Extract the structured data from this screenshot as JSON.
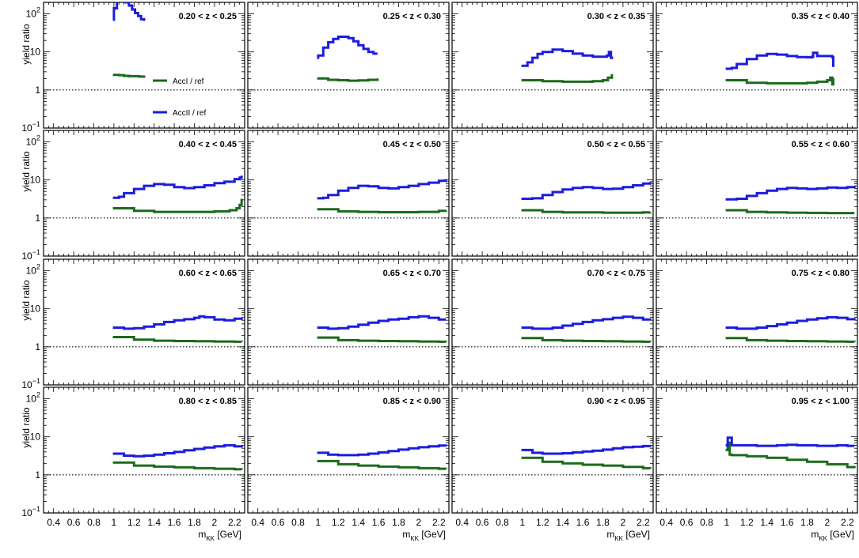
{
  "figure": {
    "ylabel": "yield ratio",
    "xlabel_main": "m",
    "xlabel_sub": "KK",
    "xlabel_unit": " [GeV]"
  },
  "colors": {
    "accI": "#1a6b1a",
    "accII": "#1c1ce0",
    "frame": "#000000",
    "reference_line": "#000000"
  },
  "legend": {
    "entries": [
      {
        "label": "AccI  / ref",
        "series": "accI"
      },
      {
        "label": "AccII  / ref",
        "series": "accII"
      }
    ]
  },
  "axis": {
    "x_ticks": [
      {
        "value": 0.4,
        "label": "0.4"
      },
      {
        "value": 0.6,
        "label": "0.6"
      },
      {
        "value": 0.8,
        "label": "0.8"
      },
      {
        "value": 1.0,
        "label": "1"
      },
      {
        "value": 1.2,
        "label": "1.2"
      },
      {
        "value": 1.4,
        "label": "1.4"
      },
      {
        "value": 1.6,
        "label": "1.6"
      },
      {
        "value": 1.8,
        "label": "1.8"
      },
      {
        "value": 2.0,
        "label": "2"
      },
      {
        "value": 2.2,
        "label": "2.2"
      }
    ],
    "y_ticks": [
      {
        "value": 0.1,
        "base": "10",
        "exp": "−1"
      },
      {
        "value": 1,
        "base": "1",
        "exp": ""
      },
      {
        "value": 10,
        "base": "10",
        "exp": ""
      },
      {
        "value": 100,
        "base": "10",
        "exp": "2"
      }
    ]
  },
  "chart_data": {
    "type": "line",
    "layout": "grid 4x4 of panels, shared axes",
    "x_range": [
      0.3,
      2.3
    ],
    "y_range": [
      0.1,
      200
    ],
    "y_scale": "log",
    "reference_line": 1,
    "panels": [
      {
        "label": "0.20 < z < 0.25",
        "accII": {
          "x": [
            0.99,
            1.0,
            1.03,
            1.06,
            1.09,
            1.12,
            1.15,
            1.18,
            1.21,
            1.24,
            1.27,
            1.3
          ],
          "y": [
            70,
            140,
            220,
            230,
            225,
            200,
            165,
            130,
            105,
            88,
            72,
            65
          ]
        },
        "accI": {
          "x": [
            0.99,
            1.05,
            1.1,
            1.15,
            1.2,
            1.25,
            1.3
          ],
          "y": [
            2.5,
            2.45,
            2.35,
            2.3,
            2.3,
            2.25,
            2.4
          ]
        }
      },
      {
        "label": "0.25 < z < 0.30",
        "accII": {
          "x": [
            0.99,
            1.0,
            1.05,
            1.1,
            1.15,
            1.2,
            1.25,
            1.3,
            1.35,
            1.4,
            1.45,
            1.5,
            1.55,
            1.59
          ],
          "y": [
            7,
            8,
            13,
            18,
            22,
            25,
            25,
            23,
            19,
            15,
            12,
            10,
            9,
            9
          ]
        },
        "accI": {
          "x": [
            0.99,
            1.1,
            1.2,
            1.3,
            1.4,
            1.5,
            1.59
          ],
          "y": [
            2.0,
            1.85,
            1.8,
            1.75,
            1.78,
            1.85,
            2.0
          ]
        }
      },
      {
        "label": "0.30 < z < 0.35",
        "accII": {
          "x": [
            0.99,
            1.05,
            1.1,
            1.15,
            1.2,
            1.3,
            1.4,
            1.5,
            1.6,
            1.7,
            1.8,
            1.84,
            1.86,
            1.88,
            1.89
          ],
          "y": [
            4.3,
            5.3,
            7,
            8.8,
            10,
            11.5,
            10.5,
            9,
            8,
            7.5,
            7.5,
            8,
            10,
            7,
            6.5
          ]
        },
        "accI": {
          "x": [
            0.99,
            1.2,
            1.4,
            1.6,
            1.7,
            1.8,
            1.85,
            1.89
          ],
          "y": [
            1.8,
            1.7,
            1.65,
            1.65,
            1.7,
            1.8,
            2.1,
            2.6
          ]
        }
      },
      {
        "label": "0.35 < z < 0.40",
        "accII": {
          "x": [
            0.99,
            1.05,
            1.1,
            1.2,
            1.3,
            1.4,
            1.5,
            1.6,
            1.7,
            1.8,
            1.85,
            1.86,
            1.9,
            2.0,
            2.05,
            2.06
          ],
          "y": [
            3.6,
            3.8,
            4.8,
            6.5,
            8.0,
            8.8,
            8.5,
            7.8,
            7.3,
            7.2,
            7.5,
            9.5,
            7.8,
            7.8,
            7.2,
            4.0
          ]
        },
        "accI": {
          "x": [
            0.99,
            1.2,
            1.4,
            1.6,
            1.8,
            1.9,
            2.0,
            2.03,
            2.05,
            2.06
          ],
          "y": [
            1.8,
            1.55,
            1.5,
            1.5,
            1.55,
            1.65,
            1.8,
            2.1,
            1.4,
            2.0
          ]
        }
      },
      {
        "label": "0.40 < z < 0.45",
        "accII": {
          "x": [
            0.99,
            1.05,
            1.1,
            1.2,
            1.3,
            1.4,
            1.5,
            1.6,
            1.7,
            1.8,
            1.9,
            2.0,
            2.1,
            2.2,
            2.25,
            2.27
          ],
          "y": [
            3.4,
            3.6,
            4.5,
            5.8,
            7.0,
            7.8,
            7.5,
            6.5,
            6.1,
            6.5,
            7.2,
            8.2,
            9.0,
            10.5,
            11.5,
            13
          ]
        },
        "accI": {
          "x": [
            0.99,
            1.2,
            1.4,
            1.6,
            1.8,
            2.0,
            2.15,
            2.22,
            2.25,
            2.27
          ],
          "y": [
            1.8,
            1.55,
            1.45,
            1.45,
            1.45,
            1.5,
            1.6,
            1.8,
            2.2,
            3.2
          ]
        }
      },
      {
        "label": "0.45 < z < 0.50",
        "accII": {
          "x": [
            0.99,
            1.05,
            1.1,
            1.2,
            1.3,
            1.4,
            1.5,
            1.6,
            1.7,
            1.8,
            1.9,
            2.0,
            2.1,
            2.2,
            2.27
          ],
          "y": [
            3.3,
            3.4,
            4.0,
            5.2,
            6.2,
            7.0,
            6.8,
            6.2,
            6.0,
            6.5,
            7.0,
            7.8,
            8.5,
            9.5,
            10.5
          ]
        },
        "accI": {
          "x": [
            0.99,
            1.2,
            1.4,
            1.6,
            1.8,
            2.0,
            2.2,
            2.27
          ],
          "y": [
            1.7,
            1.5,
            1.45,
            1.42,
            1.42,
            1.45,
            1.55,
            1.6
          ]
        }
      },
      {
        "label": "0.50 < z < 0.55",
        "accII": {
          "x": [
            0.99,
            1.1,
            1.2,
            1.3,
            1.4,
            1.5,
            1.6,
            1.7,
            1.8,
            1.9,
            2.0,
            2.1,
            2.2,
            2.27
          ],
          "y": [
            3.2,
            3.3,
            4.0,
            4.8,
            5.6,
            6.2,
            6.5,
            6.2,
            5.8,
            5.9,
            6.5,
            7.2,
            8.0,
            8.8
          ]
        },
        "accI": {
          "x": [
            0.99,
            1.2,
            1.4,
            1.6,
            1.8,
            2.0,
            2.2,
            2.27
          ],
          "y": [
            1.6,
            1.45,
            1.4,
            1.4,
            1.38,
            1.38,
            1.4,
            1.42
          ]
        }
      },
      {
        "label": "0.55 < z < 0.60",
        "accII": {
          "x": [
            0.99,
            1.1,
            1.2,
            1.3,
            1.4,
            1.5,
            1.6,
            1.7,
            1.8,
            1.9,
            2.0,
            2.1,
            2.2,
            2.27
          ],
          "y": [
            3.1,
            3.2,
            3.8,
            4.5,
            5.2,
            5.8,
            6.2,
            6.0,
            5.8,
            6.0,
            6.3,
            6.2,
            6.5,
            7.0
          ]
        },
        "accI": {
          "x": [
            0.99,
            1.2,
            1.4,
            1.6,
            1.8,
            2.0,
            2.2,
            2.27
          ],
          "y": [
            1.6,
            1.45,
            1.4,
            1.38,
            1.36,
            1.35,
            1.35,
            1.35
          ]
        }
      },
      {
        "label": "0.60 < z < 0.65",
        "accII": {
          "x": [
            0.99,
            1.1,
            1.2,
            1.3,
            1.4,
            1.5,
            1.6,
            1.7,
            1.8,
            1.85,
            1.9,
            2.0,
            2.1,
            2.2,
            2.27
          ],
          "y": [
            3.2,
            3.0,
            3.1,
            3.4,
            3.9,
            4.5,
            5.0,
            5.3,
            5.8,
            6.3,
            6.0,
            5.2,
            5.0,
            5.5,
            5.8
          ]
        },
        "accI": {
          "x": [
            0.99,
            1.2,
            1.4,
            1.6,
            1.8,
            2.0,
            2.2,
            2.27
          ],
          "y": [
            1.8,
            1.55,
            1.45,
            1.42,
            1.4,
            1.38,
            1.36,
            1.35
          ]
        }
      },
      {
        "label": "0.65 < z < 0.70",
        "accII": {
          "x": [
            0.99,
            1.1,
            1.2,
            1.3,
            1.4,
            1.5,
            1.6,
            1.7,
            1.8,
            1.9,
            2.0,
            2.1,
            2.2,
            2.27
          ],
          "y": [
            3.2,
            3.0,
            3.1,
            3.4,
            3.8,
            4.3,
            4.8,
            5.2,
            5.5,
            6.0,
            6.3,
            5.8,
            5.2,
            5.2
          ]
        },
        "accI": {
          "x": [
            0.99,
            1.2,
            1.4,
            1.6,
            1.8,
            2.0,
            2.2,
            2.27
          ],
          "y": [
            1.75,
            1.5,
            1.45,
            1.42,
            1.4,
            1.38,
            1.36,
            1.35
          ]
        }
      },
      {
        "label": "0.70 < z < 0.75",
        "accII": {
          "x": [
            0.99,
            1.1,
            1.2,
            1.3,
            1.4,
            1.5,
            1.6,
            1.7,
            1.8,
            1.9,
            2.0,
            2.1,
            2.2,
            2.27
          ],
          "y": [
            3.2,
            3.0,
            3.0,
            3.2,
            3.6,
            4.0,
            4.5,
            5.0,
            5.3,
            5.8,
            6.2,
            5.8,
            5.2,
            5.0
          ]
        },
        "accI": {
          "x": [
            0.99,
            1.2,
            1.4,
            1.6,
            1.8,
            2.0,
            2.2,
            2.27
          ],
          "y": [
            1.7,
            1.5,
            1.45,
            1.42,
            1.4,
            1.38,
            1.36,
            1.35
          ]
        }
      },
      {
        "label": "0.75 < z < 0.80",
        "accII": {
          "x": [
            0.99,
            1.1,
            1.2,
            1.3,
            1.4,
            1.5,
            1.6,
            1.7,
            1.8,
            1.9,
            2.0,
            2.1,
            2.2,
            2.27
          ],
          "y": [
            3.2,
            3.0,
            3.0,
            3.2,
            3.5,
            3.9,
            4.3,
            4.8,
            5.2,
            5.6,
            6.0,
            5.8,
            5.3,
            5.0
          ]
        },
        "accI": {
          "x": [
            0.99,
            1.2,
            1.4,
            1.6,
            1.8,
            2.0,
            2.2,
            2.27
          ],
          "y": [
            1.7,
            1.5,
            1.45,
            1.42,
            1.4,
            1.38,
            1.36,
            1.35
          ]
        }
      },
      {
        "label": "0.80 < z < 0.85",
        "accII": {
          "x": [
            0.99,
            1.1,
            1.2,
            1.3,
            1.4,
            1.5,
            1.6,
            1.7,
            1.8,
            1.9,
            2.0,
            2.1,
            2.2,
            2.27
          ],
          "y": [
            3.6,
            3.2,
            3.1,
            3.2,
            3.4,
            3.7,
            4.0,
            4.4,
            4.8,
            5.2,
            5.6,
            6.0,
            5.6,
            5.2
          ]
        },
        "accI": {
          "x": [
            0.99,
            1.2,
            1.4,
            1.6,
            1.8,
            2.0,
            2.2,
            2.27
          ],
          "y": [
            2.1,
            1.75,
            1.65,
            1.58,
            1.5,
            1.45,
            1.4,
            1.38
          ]
        }
      },
      {
        "label": "0.85 < z < 0.90",
        "accII": {
          "x": [
            0.99,
            1.1,
            1.2,
            1.3,
            1.4,
            1.5,
            1.6,
            1.7,
            1.8,
            1.9,
            2.0,
            2.1,
            2.2,
            2.27
          ],
          "y": [
            3.8,
            3.4,
            3.3,
            3.3,
            3.4,
            3.6,
            3.9,
            4.2,
            4.6,
            5.0,
            5.3,
            5.6,
            5.9,
            5.6
          ]
        },
        "accI": {
          "x": [
            0.99,
            1.2,
            1.4,
            1.6,
            1.8,
            2.0,
            2.2,
            2.27
          ],
          "y": [
            2.3,
            1.9,
            1.75,
            1.65,
            1.58,
            1.5,
            1.45,
            1.42
          ]
        }
      },
      {
        "label": "0.90 < z < 0.95",
        "accII": {
          "x": [
            0.99,
            1.1,
            1.2,
            1.3,
            1.4,
            1.5,
            1.6,
            1.7,
            1.8,
            1.9,
            2.0,
            2.1,
            2.2,
            2.27
          ],
          "y": [
            4.5,
            3.8,
            3.6,
            3.6,
            3.7,
            3.9,
            4.1,
            4.3,
            4.6,
            5.0,
            5.3,
            5.5,
            5.7,
            5.8
          ]
        },
        "accI": {
          "x": [
            0.99,
            1.2,
            1.4,
            1.6,
            1.8,
            2.0,
            2.2,
            2.27
          ],
          "y": [
            2.8,
            2.2,
            2.0,
            1.85,
            1.75,
            1.62,
            1.5,
            1.45
          ]
        }
      },
      {
        "label": "0.95 < z < 1.00",
        "accII": {
          "x": [
            0.99,
            1.01,
            1.03,
            1.05,
            1.1,
            1.2,
            1.3,
            1.4,
            1.5,
            1.6,
            1.7,
            1.8,
            1.9,
            2.0,
            2.1,
            2.2,
            2.27
          ],
          "y": [
            6.0,
            9.5,
            9.5,
            6.0,
            6.0,
            6.0,
            5.8,
            5.8,
            6.0,
            6.2,
            6.0,
            6.0,
            5.8,
            5.8,
            6.0,
            5.8,
            5.8
          ]
        },
        "accI": {
          "x": [
            0.99,
            1.01,
            1.03,
            1.05,
            1.2,
            1.4,
            1.6,
            1.8,
            2.0,
            2.2,
            2.27
          ],
          "y": [
            4.5,
            7.0,
            3.4,
            3.3,
            3.1,
            2.8,
            2.5,
            2.2,
            1.9,
            1.6,
            1.5
          ]
        }
      }
    ]
  }
}
